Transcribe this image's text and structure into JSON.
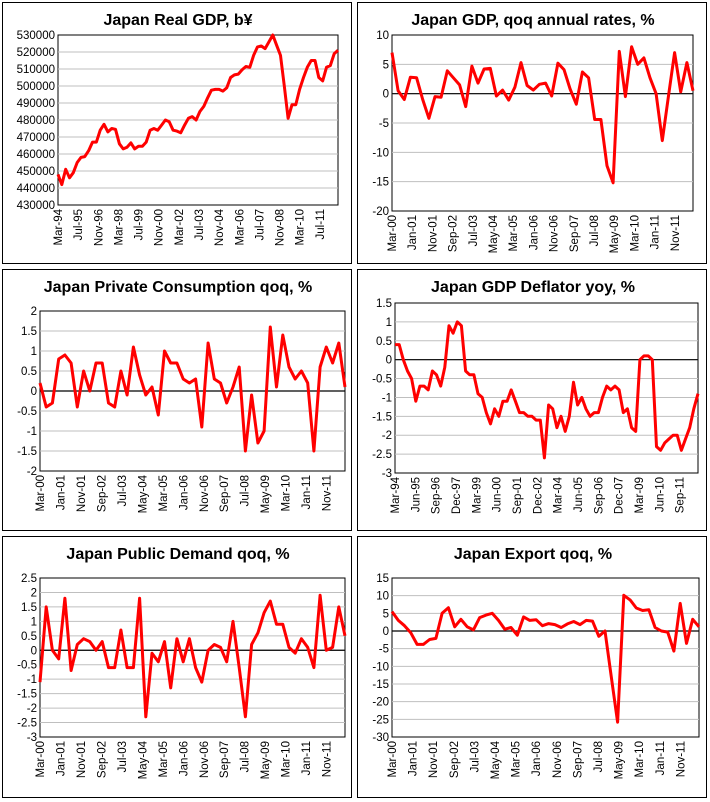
{
  "colors": {
    "line": "#ff0000",
    "grid": "#bfbfbf",
    "axis": "#000000"
  },
  "chart_data": [
    {
      "type": "line",
      "title": "Japan Real GDP, b¥",
      "ylim": [
        430000,
        530000
      ],
      "ystep": 10000,
      "xtick_labels": [
        "Mar-94",
        "Jul-95",
        "Nov-96",
        "Mar-98",
        "Jul-99",
        "Nov-00",
        "Mar-02",
        "Jul-03",
        "Nov-04",
        "Mar-06",
        "Jul-07",
        "Nov-08",
        "Mar-10",
        "Jul-11"
      ],
      "values": [
        448000,
        442000,
        451000,
        446000,
        449000,
        455000,
        458000,
        458500,
        462000,
        467000,
        467000,
        474000,
        477500,
        473000,
        475000,
        474500,
        466000,
        463000,
        464000,
        466500,
        463000,
        464500,
        464500,
        467000,
        474000,
        475000,
        474000,
        477000,
        480000,
        479000,
        474000,
        473500,
        472500,
        477000,
        481000,
        482000,
        480000,
        485000,
        488000,
        493000,
        497500,
        498000,
        498000,
        497000,
        499000,
        505000,
        506500,
        507000,
        509500,
        511500,
        511000,
        518000,
        523000,
        523500,
        522000,
        526000,
        530000,
        524000,
        518000,
        500000,
        481000,
        489000,
        489000,
        498000,
        505000,
        511000,
        515000,
        515000,
        505000,
        503000,
        511000,
        512000,
        519000,
        521000
      ],
      "grid": true,
      "zero_line": false
    },
    {
      "type": "line",
      "title": "Japan GDP, qoq annual rates, %",
      "ylim": [
        -20,
        10
      ],
      "ystep": 5,
      "xtick_labels": [
        "Mar-00",
        "Jan-01",
        "Nov-01",
        "Sep-02",
        "Jul-03",
        "May-04",
        "Mar-05",
        "Jan-06",
        "Nov-06",
        "Sep-07",
        "Jul-08",
        "May-09",
        "Mar-10",
        "Jan-11",
        "Nov-11"
      ],
      "values": [
        7,
        0.5,
        -1,
        2.8,
        2.7,
        -1,
        -4.2,
        -0.5,
        -0.6,
        3.9,
        2.7,
        1.5,
        -2.2,
        4.7,
        1.8,
        4.2,
        4.3,
        -0.4,
        0.6,
        -1.1,
        1.1,
        5.3,
        1.4,
        0.6,
        1.6,
        1.8,
        -0.4,
        5.2,
        4.1,
        0.8,
        -1.8,
        3.7,
        2.7,
        -4.4,
        -4.4,
        -12.3,
        -15.2,
        7.2,
        -0.5,
        8,
        5,
        6.1,
        2.7,
        0,
        -8,
        -0.5,
        7,
        0.3,
        5.3,
        0.5
      ],
      "grid": true,
      "zero_line": true
    },
    {
      "type": "line",
      "title": "Japan Private Consumption qoq, %",
      "ylim": [
        -2,
        2
      ],
      "ystep": 0.5,
      "xtick_labels": [
        "Mar-00",
        "Jan-01",
        "Nov-01",
        "Sep-02",
        "Jul-03",
        "May-04",
        "Mar-05",
        "Jan-06",
        "Nov-06",
        "Sep-07",
        "Jul-08",
        "May-09",
        "Mar-10",
        "Jan-11",
        "Nov-11"
      ],
      "values": [
        0.2,
        -0.4,
        -0.3,
        0.8,
        0.9,
        0.7,
        -0.4,
        0.5,
        0,
        0.7,
        0.7,
        -0.3,
        -0.4,
        0.5,
        -0.1,
        1.1,
        0.4,
        -0.1,
        0.1,
        -0.6,
        1.0,
        0.7,
        0.7,
        0.3,
        0.2,
        0.3,
        -0.9,
        1.2,
        0.3,
        0.2,
        -0.3,
        0.1,
        0.6,
        -1.5,
        -0.1,
        -1.3,
        -1.0,
        1.6,
        0.1,
        1.4,
        0.6,
        0.3,
        0.5,
        0.2,
        -1.5,
        0.6,
        1.1,
        0.7,
        1.2,
        0.1
      ],
      "grid": true,
      "zero_line": true
    },
    {
      "type": "line",
      "title": "Japan GDP Deflator yoy, %",
      "ylim": [
        -3,
        1.5
      ],
      "ystep": 0.5,
      "xtick_labels": [
        "Mar-94",
        "Jun-95",
        "Sep-96",
        "Dec-97",
        "Mar-99",
        "Jun-00",
        "Sep-01",
        "Dec-02",
        "Mar-04",
        "Jun-05",
        "Sep-06",
        "Dec-07",
        "Mar-09",
        "Jun-10",
        "Sep-11"
      ],
      "values": [
        0.4,
        0.4,
        0,
        -0.3,
        -0.5,
        -1.1,
        -0.7,
        -0.7,
        -0.8,
        -0.3,
        -0.4,
        -0.7,
        -0.2,
        0.9,
        0.7,
        1.0,
        0.9,
        -0.3,
        -0.4,
        -0.4,
        -0.9,
        -1.0,
        -1.4,
        -1.7,
        -1.3,
        -1.5,
        -1.1,
        -1.1,
        -0.8,
        -1.1,
        -1.4,
        -1.4,
        -1.5,
        -1.5,
        -1.6,
        -1.6,
        -2.6,
        -1.2,
        -1.3,
        -1.8,
        -1.5,
        -1.9,
        -1.5,
        -0.6,
        -1.2,
        -1.0,
        -1.3,
        -1.5,
        -1.4,
        -1.4,
        -1.0,
        -0.7,
        -0.8,
        -0.7,
        -0.8,
        -1.4,
        -1.3,
        -1.8,
        -1.9,
        0,
        0.1,
        0.1,
        0,
        -2.3,
        -2.4,
        -2.2,
        -2.1,
        -2.0,
        -2.0,
        -2.4,
        -2.1,
        -1.8,
        -1.3,
        -0.9
      ],
      "grid": true,
      "zero_line": true
    },
    {
      "type": "line",
      "title": "Japan Public Demand qoq, %",
      "ylim": [
        -3,
        2.5
      ],
      "ystep": 0.5,
      "xtick_labels": [
        "Mar-00",
        "Jan-01",
        "Nov-01",
        "Sep-02",
        "Jul-03",
        "May-04",
        "Mar-05",
        "Jan-06",
        "Nov-06",
        "Sep-07",
        "Jul-08",
        "May-09",
        "Mar-10",
        "Jan-11",
        "Nov-11"
      ],
      "values": [
        -1.1,
        1.5,
        0,
        -0.3,
        1.8,
        -0.7,
        0.2,
        0.4,
        0.3,
        0,
        0.3,
        -0.6,
        -0.6,
        0.7,
        -0.6,
        -0.6,
        1.8,
        -2.3,
        -0.1,
        -0.4,
        0.3,
        -1.3,
        0.4,
        -0.4,
        0.4,
        -0.6,
        -1.1,
        0,
        0.2,
        0.1,
        -0.4,
        1.0,
        -0.6,
        -2.3,
        0.2,
        0.6,
        1.3,
        1.7,
        0.9,
        0.9,
        0.1,
        -0.1,
        0.4,
        0.1,
        -0.6,
        1.9,
        0,
        0.1,
        1.5,
        0.5
      ],
      "grid": true,
      "zero_line": true
    },
    {
      "type": "line",
      "title": "Japan Export qoq, %",
      "ylim": [
        -30,
        15
      ],
      "ystep": 5,
      "xtick_labels": [
        "Mar-00",
        "Jan-01",
        "Nov-01",
        "Sep-02",
        "Jul-03",
        "May-04",
        "Mar-05",
        "Jan-06",
        "Nov-06",
        "Sep-07",
        "Jul-08",
        "May-09",
        "Mar-10",
        "Jan-11",
        "Nov-11"
      ],
      "values": [
        5.5,
        3,
        1.5,
        -0.5,
        -3.8,
        -3.8,
        -2.4,
        -2.1,
        5,
        6.6,
        1.2,
        3.3,
        1.2,
        0.3,
        3.8,
        4.5,
        5,
        3,
        0.5,
        1,
        -1.2,
        4,
        3,
        3.2,
        1.5,
        2.1,
        1.8,
        1,
        2,
        2.7,
        1.8,
        3,
        2.8,
        -1.5,
        0,
        -13,
        -25.8,
        10.1,
        8.8,
        6.5,
        5.8,
        6,
        1,
        0,
        -0.3,
        -5.7,
        7.8,
        -3.5,
        3.3,
        1.2
      ],
      "grid": true,
      "zero_line": true
    }
  ]
}
